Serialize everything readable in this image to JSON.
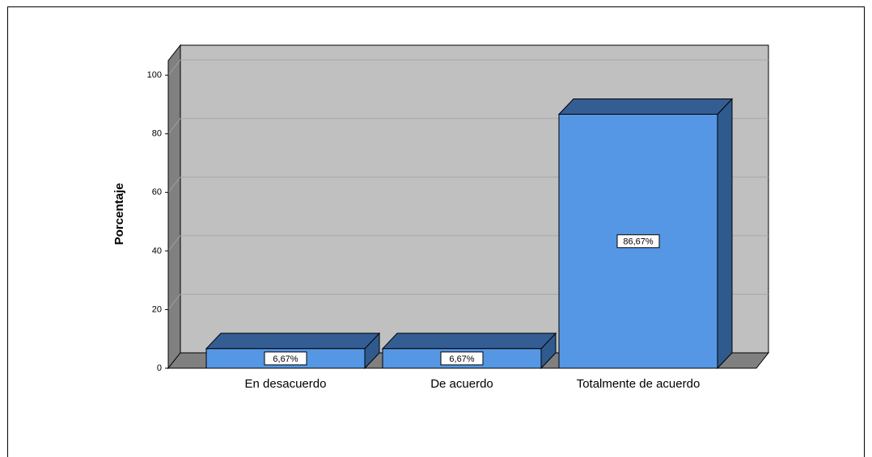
{
  "chart_data": {
    "type": "bar3d",
    "categories": [
      "En desacuerdo",
      "De acuerdo",
      "Totalmente de acuerdo"
    ],
    "values": [
      6.67,
      6.67,
      86.67
    ],
    "value_labels": [
      "6,67%",
      "6,67%",
      "86,67%"
    ],
    "color": "#5597e4",
    "ylabel": "Porcentaje",
    "ylim": [
      0,
      105
    ],
    "yticks": [
      0,
      20,
      40,
      60,
      80,
      100
    ],
    "grid": true
  }
}
